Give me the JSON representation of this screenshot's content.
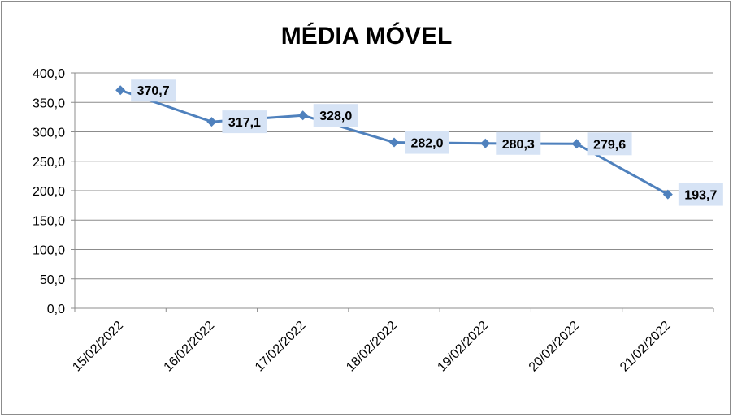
{
  "chart_data": {
    "type": "line",
    "title": "MÉDIA MÓVEL",
    "categories": [
      "15/02/2022",
      "16/02/2022",
      "17/02/2022",
      "18/02/2022",
      "19/02/2022",
      "20/02/2022",
      "21/02/2022"
    ],
    "series": [
      {
        "values": [
          370.7,
          317.1,
          328.0,
          282.0,
          280.3,
          279.6,
          193.7
        ],
        "data_labels": [
          "370,7",
          "317,1",
          "328,0",
          "282,0",
          "280,3",
          "279,6",
          "193,7"
        ],
        "color": "#4f81bd",
        "marker": "diamond"
      }
    ],
    "ylim": [
      0,
      400
    ],
    "ytick_values": [
      0,
      50,
      100,
      150,
      200,
      250,
      300,
      350,
      400
    ],
    "ytick_labels": [
      "0,0",
      "50,0",
      "100,0",
      "150,0",
      "200,0",
      "250,0",
      "300,0",
      "350,0",
      "400,0"
    ],
    "grid": true,
    "label_box_color": "#d6e3f5"
  }
}
